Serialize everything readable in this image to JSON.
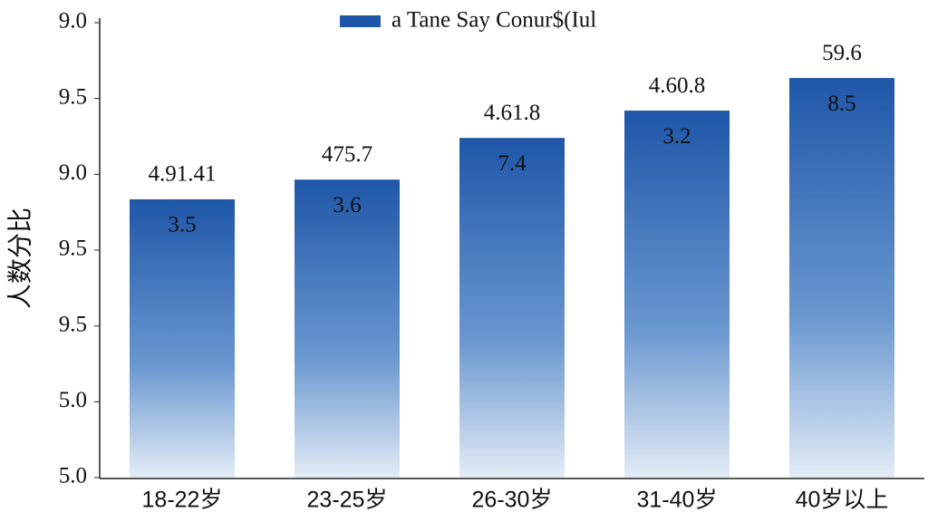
{
  "chart_data": {
    "type": "bar",
    "y_label": "人数分比",
    "categories": [
      "18-22岁",
      "23-25岁",
      "26-30岁",
      "31-40岁",
      "40岁以上"
    ],
    "series": [
      {
        "name": "a  Tane Say Conur$(Iul",
        "color": "#1f56a8",
        "values": [
          3.67,
          3.93,
          4.48,
          4.84,
          5.27
        ]
      }
    ],
    "labels_top": [
      "4.91.41",
      "475.7",
      "4.61.8",
      "4.60.8",
      "59.6"
    ],
    "labels_inner": [
      "3.5",
      "3.6",
      "7.4",
      "3.2",
      "8.5"
    ],
    "ylim": [
      0,
      6
    ],
    "yticks": [
      {
        "value": 0,
        "label": "5.0"
      },
      {
        "value": 1,
        "label": "5.0"
      },
      {
        "value": 2,
        "label": "9.5"
      },
      {
        "value": 3,
        "label": "9.5"
      },
      {
        "value": 4,
        "label": "9.0"
      },
      {
        "value": 5,
        "label": "9.5"
      },
      {
        "value": 6,
        "label": "9.0"
      }
    ],
    "grid": false
  }
}
